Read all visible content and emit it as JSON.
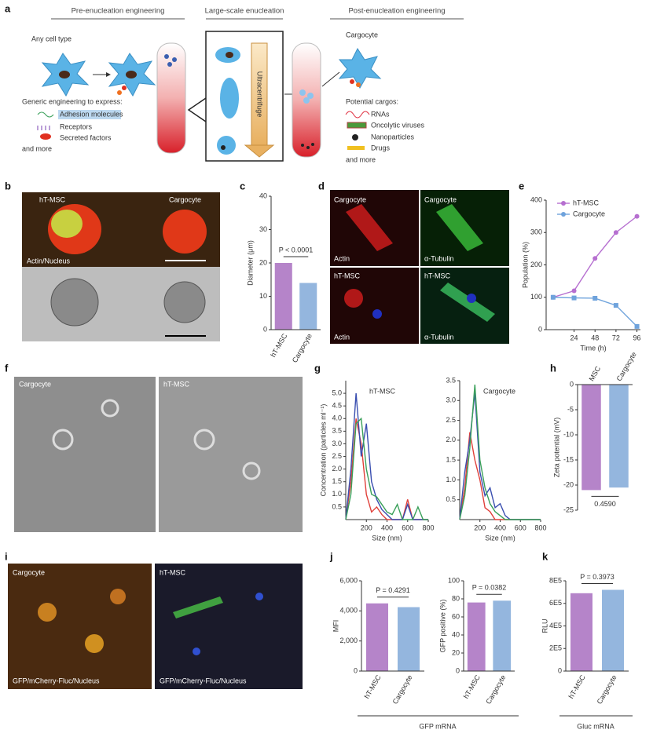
{
  "panels": {
    "a": {
      "letter": "a",
      "sections": [
        "Pre-enucleation engineering",
        "Large-scale enucleation",
        "Post-enucleation engineering"
      ],
      "any_cell": "Any cell type",
      "generic": "Generic engineering to express:",
      "engineering_items": [
        "Adhesion molecules",
        "Receptors",
        "Secreted factors"
      ],
      "and_more": "and more",
      "ultracentrifuge": "Ultracentrifuge",
      "cargocyte": "Cargocyte",
      "cargos_title": "Potential cargos:",
      "cargos": [
        "RNAs",
        "Oncolytic viruses",
        "Nanoparticles",
        "Drugs"
      ],
      "cargos_more": "and more"
    },
    "b": {
      "letter": "b",
      "labels": [
        "hT-MSC",
        "Cargocyte"
      ],
      "stain": "Actin/Nucleus"
    },
    "c": {
      "letter": "c"
    },
    "d": {
      "letter": "d",
      "labels": [
        "Cargocyte",
        "Cargocyte",
        "hT-MSC",
        "hT-MSC"
      ],
      "stains": [
        "Actin",
        "α-Tubulin",
        "Actin",
        "α-Tubulin"
      ]
    },
    "e": {
      "letter": "e"
    },
    "f": {
      "letter": "f",
      "labels": [
        "Cargocyte",
        "hT-MSC"
      ]
    },
    "g": {
      "letter": "g"
    },
    "h": {
      "letter": "h"
    },
    "i": {
      "letter": "i",
      "labels": [
        "Cargocyte",
        "hT-MSC"
      ],
      "stains": [
        "GFP/mCherry-Fluc/Nucleus",
        "GFP/mCherry-Fluc/Nucleus"
      ]
    },
    "j": {
      "letter": "j",
      "group": "GFP mRNA"
    },
    "k": {
      "letter": "k",
      "group": "Gluc mRNA"
    }
  },
  "charts": {
    "c": {
      "type": "bar",
      "categories": [
        "hT-MSC",
        "Cargocyte"
      ],
      "values": [
        20,
        14
      ],
      "colors": [
        "#b584c9",
        "#94b6de"
      ],
      "ylabel": "Diameter (μm)",
      "ylim": [
        0,
        40
      ],
      "yticks": [
        0,
        10,
        20,
        30,
        40
      ],
      "annotation": "P < 0.0001"
    },
    "e": {
      "type": "line",
      "x": [
        0,
        24,
        48,
        72,
        96
      ],
      "xlim": [
        -8,
        100
      ],
      "xticks": [
        24,
        48,
        72,
        96
      ],
      "ylim": [
        0,
        400
      ],
      "yticks": [
        0,
        100,
        200,
        300,
        400
      ],
      "xlabel": "Time (h)",
      "ylabel": "Population (%)",
      "series": [
        {
          "name": "hT-MSC",
          "color": "#b66fd0",
          "values": [
            100,
            120,
            220,
            300,
            350
          ]
        },
        {
          "name": "Cargocyte",
          "color": "#6fa3dc",
          "values": [
            100,
            98,
            97,
            75,
            10
          ]
        }
      ]
    },
    "g1": {
      "type": "line",
      "title": "hT-MSC",
      "x": [
        0,
        50,
        100,
        150,
        200,
        250,
        300,
        350,
        400,
        450,
        500,
        550,
        600,
        650,
        700,
        750,
        800
      ],
      "xlim": [
        0,
        800
      ],
      "xticks": [
        200,
        400,
        600,
        800
      ],
      "ylim": [
        0,
        5.5
      ],
      "yticks": [
        0.5,
        {
          "value": 1,
          "label": "1.0"
        },
        1.5,
        {
          "value": 2,
          "label": "2.0"
        },
        2.5,
        {
          "value": 3,
          "label": "3.0"
        },
        3.5,
        {
          "value": 4,
          "label": "4.0"
        },
        4.5,
        {
          "value": 5,
          "label": "5.0"
        }
      ],
      "xlabel": "Size (nm)",
      "ylabel": "Concentration (particles ml⁻¹)",
      "series": [
        {
          "color": "#e0403a",
          "values": [
            0,
            1.5,
            4.0,
            3.0,
            1.0,
            0.3,
            0.5,
            0.2,
            0,
            0,
            0,
            0,
            0.8,
            0,
            0,
            0,
            0
          ]
        },
        {
          "color": "#3a4fb0",
          "values": [
            0,
            2.0,
            5.0,
            2.5,
            3.8,
            1.5,
            0.8,
            0.4,
            0.2,
            0,
            0,
            0,
            0.6,
            0,
            0,
            0,
            0
          ]
        },
        {
          "color": "#3aa05a",
          "values": [
            0,
            1.0,
            3.8,
            4.0,
            2.0,
            1.0,
            0.9,
            0.6,
            0.3,
            0.2,
            0.6,
            0,
            0,
            0,
            0.5,
            0,
            0
          ]
        }
      ]
    },
    "g2": {
      "type": "line",
      "title": "Cargocyte",
      "x": [
        0,
        50,
        100,
        150,
        200,
        250,
        300,
        350,
        400,
        450,
        500,
        550,
        600,
        650,
        700,
        750,
        800
      ],
      "xlim": [
        0,
        800
      ],
      "xticks": [
        200,
        400,
        600,
        800
      ],
      "ylim": [
        0,
        3.5
      ],
      "yticks": [
        0.5,
        {
          "value": 1,
          "label": "1.0"
        },
        1.5,
        {
          "value": 2,
          "label": "2.0"
        },
        2.5,
        {
          "value": 3,
          "label": "3.0"
        },
        3.5
      ],
      "xlabel": "Size (nm)",
      "series": [
        {
          "color": "#e0403a",
          "values": [
            0,
            0.8,
            2.2,
            1.5,
            1.0,
            0.3,
            0.2,
            0,
            0,
            0,
            0,
            0,
            0,
            0,
            0,
            0,
            0
          ]
        },
        {
          "color": "#3a4fb0",
          "values": [
            0,
            1.2,
            2.0,
            3.2,
            1.2,
            0.6,
            0.8,
            0.3,
            0.4,
            0.1,
            0,
            0,
            0,
            0,
            0,
            0,
            0
          ]
        },
        {
          "color": "#3aa05a",
          "values": [
            0,
            0.6,
            1.8,
            3.4,
            1.5,
            0.8,
            0.4,
            0.2,
            0.1,
            0,
            0,
            0,
            0,
            0,
            0,
            0,
            0
          ]
        }
      ]
    },
    "h": {
      "type": "bar",
      "categories": [
        "MSC",
        "Cargocyte"
      ],
      "values": [
        -21,
        -20.5
      ],
      "colors": [
        "#b584c9",
        "#94b6de"
      ],
      "ylabel": "Zeta potential (mV)",
      "ylim": [
        -25,
        0
      ],
      "yticks": [
        0,
        -5,
        -10,
        -15,
        -20,
        -25
      ],
      "annotation": "0.4590"
    },
    "j1": {
      "type": "bar",
      "categories": [
        "hT-MSC",
        "Cargocyte"
      ],
      "values": [
        4500,
        4250
      ],
      "colors": [
        "#b584c9",
        "#94b6de"
      ],
      "ylabel": "MFI",
      "ylim": [
        0,
        6000
      ],
      "yticks": [
        0,
        {
          "value": 2000,
          "label": "2,000"
        },
        {
          "value": 4000,
          "label": "4,000"
        },
        {
          "value": 6000,
          "label": "6,000"
        }
      ],
      "annotation": "P = 0.4291"
    },
    "j2": {
      "type": "bar",
      "categories": [
        "hT-MSC",
        "Cargocyte"
      ],
      "values": [
        76,
        78
      ],
      "colors": [
        "#b584c9",
        "#94b6de"
      ],
      "ylabel": "GFP positive (%)",
      "ylim": [
        0,
        100
      ],
      "yticks": [
        0,
        20,
        40,
        60,
        80,
        100
      ],
      "annotation": "P = 0.0382"
    },
    "k": {
      "type": "bar",
      "categories": [
        "hT-MSC",
        "Cargocyte"
      ],
      "values": [
        690000,
        720000
      ],
      "colors": [
        "#b584c9",
        "#94b6de"
      ],
      "ylabel": "RLU",
      "ylim": [
        0,
        800000
      ],
      "yticks": [
        0,
        {
          "value": 200000,
          "label": "2E5"
        },
        {
          "value": 400000,
          "label": "4E5"
        },
        {
          "value": 600000,
          "label": "6E5"
        },
        {
          "value": 800000,
          "label": "8E5"
        }
      ],
      "annotation": "P = 0.3973"
    }
  }
}
